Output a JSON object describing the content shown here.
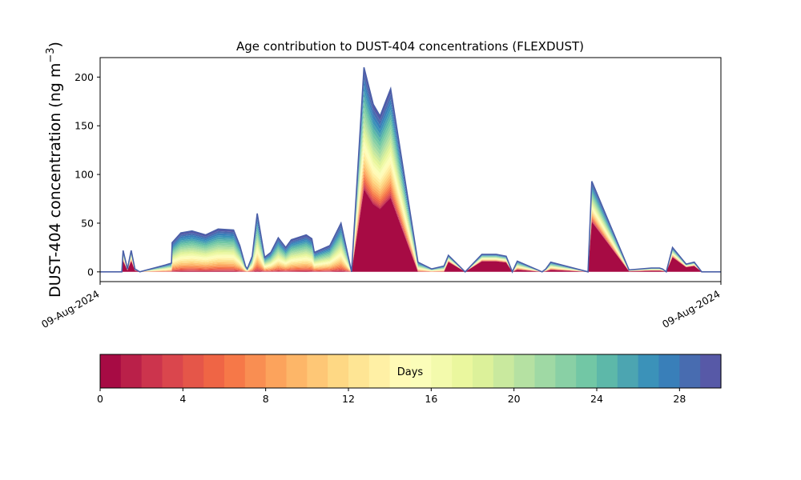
{
  "chart_data": {
    "type": "area",
    "stacked": true,
    "title": "Age contribution to DUST-404 concentrations (FLEXDUST)",
    "ylabel": "DUST-404 concentration (ng m",
    "ylabel_unit_exp": "−3",
    "ylabel_close": ")",
    "xlabel": "",
    "ylim": [
      -10,
      220
    ],
    "y_ticks": [
      0,
      50,
      100,
      150,
      200
    ],
    "x_tick_labels": [
      "09-Aug-2024",
      "09-Aug-2024"
    ],
    "grid": false,
    "x": [
      0,
      3.5,
      3.7,
      4.4,
      5.0,
      5.6,
      6.4,
      10.5,
      11.5,
      11.6,
      13.0,
      14.8,
      17.0,
      19.0,
      21.5,
      22.5,
      23.4,
      23.7,
      24.5,
      25.3,
      26.5,
      27.5,
      28.7,
      29.9,
      30.8,
      33.2,
      34.1,
      34.5,
      37.0,
      38.8,
      40.5,
      42.5,
      44.0,
      45.1,
      46.0,
      46.8,
      51.2,
      53.4,
      55.4,
      56.1,
      58.8,
      61.5,
      63.0,
      63.8,
      65.4,
      66.4,
      67.2,
      71.2,
      71.8,
      72.6,
      78.6,
      79.2,
      85.2,
      88.8,
      90.1,
      90.6,
      91.2,
      92.2,
      94.4,
      95.7,
      96.9,
      98.2,
      100
    ],
    "x_range": [
      0,
      100
    ],
    "total": [
      0,
      0,
      22,
      3,
      22,
      3,
      0,
      7,
      9,
      30,
      40,
      42,
      38,
      44,
      43,
      27,
      6,
      3,
      16,
      60,
      15,
      20,
      35,
      25,
      33,
      38,
      34,
      20,
      27,
      50,
      0,
      210,
      172,
      160,
      175,
      188,
      10,
      3,
      6,
      17,
      0,
      18,
      18,
      18,
      16,
      0,
      11,
      0,
      3,
      10,
      0,
      93,
      2,
      4,
      4,
      3,
      0,
      25,
      8,
      10,
      0,
      0,
      0
    ],
    "low_age_fraction": [
      0,
      0,
      0.5,
      0.5,
      0.5,
      0.5,
      0,
      0.0,
      0.0,
      0.0,
      0.0,
      0.0,
      0.0,
      0.0,
      0.0,
      0.0,
      0.0,
      0.0,
      0.0,
      0.0,
      0.0,
      0.0,
      0.0,
      0.0,
      0.0,
      0.0,
      0.0,
      0.0,
      0.0,
      0.0,
      0,
      0.4,
      0.4,
      0.4,
      0.4,
      0.4,
      0.0,
      0.0,
      0.0,
      0.6,
      0,
      0.6,
      0.6,
      0.6,
      0.6,
      0,
      0.2,
      0,
      0.2,
      0.2,
      0,
      0.55,
      0.3,
      0.3,
      0.3,
      0.3,
      0,
      0.6,
      0.6,
      0.6,
      0,
      0,
      0
    ],
    "colorbar": {
      "label": "Days",
      "min": 0,
      "max": 30,
      "bins": 30,
      "ticks": [
        0,
        4,
        8,
        12,
        16,
        20,
        24,
        28
      ],
      "colormap": "Spectral",
      "colors": [
        "#9e0142",
        "#d53e4f",
        "#f46d43",
        "#fdae61",
        "#fee08b",
        "#ffffbf",
        "#e6f598",
        "#abdda4",
        "#66c2a5",
        "#3288bd",
        "#5e4fa2"
      ]
    },
    "line_color": "#4a5fa8"
  }
}
